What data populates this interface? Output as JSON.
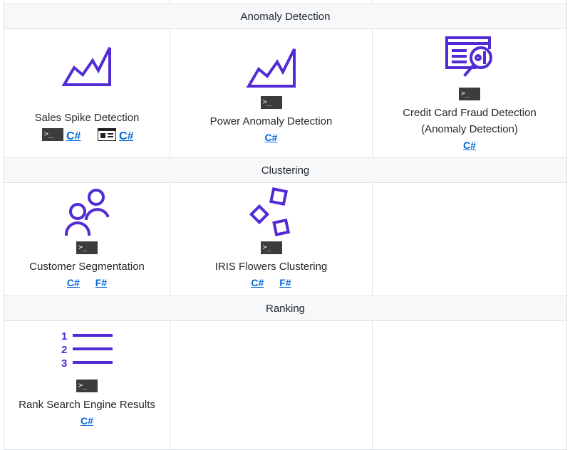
{
  "sections": [
    {
      "title": "Anomaly Detection",
      "cells": [
        {
          "icon": "chart-spike-icon",
          "title": "Sales Spike Detection",
          "console": true,
          "web": true,
          "links": [
            "C#",
            "C#"
          ]
        },
        {
          "icon": "chart-spike-icon",
          "title": "Power Anomaly Detection",
          "console": true,
          "links": [
            "C#"
          ]
        },
        {
          "icon": "magnifier-document-icon",
          "title_lines": [
            "Credit Card Fraud Detection",
            "(Anomaly Detection)"
          ],
          "console": true,
          "links": [
            "C#"
          ]
        }
      ]
    },
    {
      "title": "Clustering",
      "cells": [
        {
          "icon": "people-icon",
          "title": "Customer Segmentation",
          "console": true,
          "links": [
            "C#",
            "F#"
          ]
        },
        {
          "icon": "scattered-squares-icon",
          "title": "IRIS Flowers Clustering",
          "console": true,
          "links": [
            "C#",
            "F#"
          ]
        }
      ]
    },
    {
      "title": "Ranking",
      "cells": [
        {
          "icon": "numbered-list-icon",
          "title": "Rank Search Engine Results",
          "console": true,
          "links": [
            "C#"
          ]
        }
      ]
    }
  ],
  "console_glyph": ">_",
  "colors": {
    "accent": "#512bd4",
    "link": "#0366d6",
    "header_bg": "#f6f8fa",
    "border": "#dfe2e5",
    "console_bg": "#3c3c3c"
  }
}
